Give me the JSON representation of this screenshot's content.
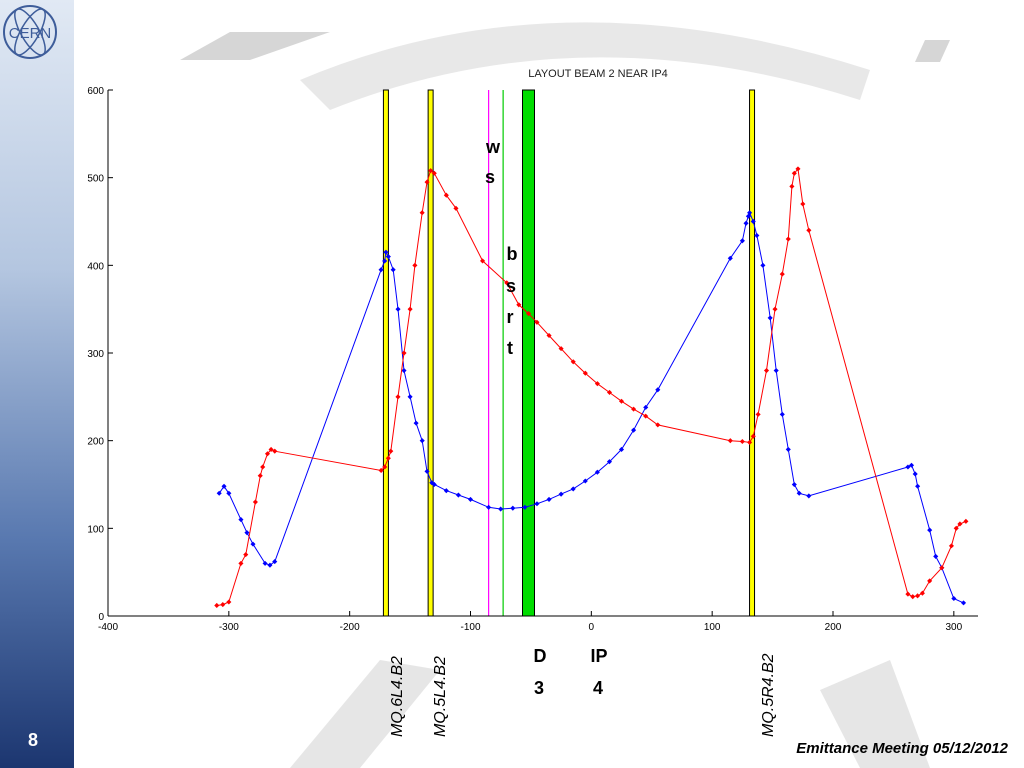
{
  "page_number": "8",
  "footer_text": "Emittance Meeting 05/12/2012",
  "logo_text": "CERN",
  "chart_data": {
    "type": "line",
    "title": "LAYOUT BEAM 2 NEAR IP4",
    "xlim": [
      -400,
      320
    ],
    "ylim": [
      0,
      600
    ],
    "xticks": [
      -400,
      -300,
      -200,
      -100,
      0,
      100,
      200,
      300
    ],
    "yticks": [
      0,
      100,
      200,
      300,
      400,
      500,
      600
    ],
    "grid": false,
    "series": [
      {
        "color": "#0000ff",
        "points": [
          [
            -308,
            140
          ],
          [
            -304,
            148
          ],
          [
            -300,
            140
          ],
          [
            -290,
            110
          ],
          [
            -285,
            95
          ],
          [
            -280,
            82
          ],
          [
            -270,
            60
          ],
          [
            -266,
            58
          ],
          [
            -262,
            62
          ],
          [
            -174,
            395
          ],
          [
            -171,
            405
          ],
          [
            -170,
            415
          ],
          [
            -168,
            410
          ],
          [
            -164,
            395
          ],
          [
            -160,
            350
          ],
          [
            -155,
            280
          ],
          [
            -150,
            250
          ],
          [
            -145,
            220
          ],
          [
            -140,
            200
          ],
          [
            -136,
            165
          ],
          [
            -132,
            152
          ],
          [
            -130,
            150
          ],
          [
            -120,
            143
          ],
          [
            -110,
            138
          ],
          [
            -100,
            133
          ],
          [
            -85,
            124
          ],
          [
            -75,
            122
          ],
          [
            -65,
            123
          ],
          [
            -55,
            124
          ],
          [
            -45,
            128
          ],
          [
            -35,
            133
          ],
          [
            -25,
            139
          ],
          [
            -15,
            145
          ],
          [
            -5,
            154
          ],
          [
            5,
            164
          ],
          [
            15,
            176
          ],
          [
            25,
            190
          ],
          [
            35,
            212
          ],
          [
            45,
            238
          ],
          [
            55,
            258
          ],
          [
            115,
            408
          ],
          [
            125,
            428
          ],
          [
            128,
            448
          ],
          [
            130,
            456
          ],
          [
            131,
            460
          ],
          [
            134,
            450
          ],
          [
            137,
            434
          ],
          [
            142,
            400
          ],
          [
            148,
            340
          ],
          [
            153,
            280
          ],
          [
            158,
            230
          ],
          [
            163,
            190
          ],
          [
            168,
            150
          ],
          [
            172,
            140
          ],
          [
            180,
            137
          ],
          [
            262,
            170
          ],
          [
            265,
            172
          ],
          [
            268,
            162
          ],
          [
            270,
            148
          ],
          [
            280,
            98
          ],
          [
            285,
            68
          ],
          [
            290,
            55
          ],
          [
            300,
            20
          ],
          [
            308,
            15
          ]
        ]
      },
      {
        "color": "#ff0000",
        "points": [
          [
            -310,
            12
          ],
          [
            -305,
            13
          ],
          [
            -300,
            16
          ],
          [
            -290,
            60
          ],
          [
            -286,
            70
          ],
          [
            -278,
            130
          ],
          [
            -274,
            160
          ],
          [
            -272,
            170
          ],
          [
            -268,
            185
          ],
          [
            -265,
            190
          ],
          [
            -262,
            188
          ],
          [
            -174,
            166
          ],
          [
            -171,
            170
          ],
          [
            -168,
            180
          ],
          [
            -166,
            188
          ],
          [
            -160,
            250
          ],
          [
            -155,
            300
          ],
          [
            -150,
            350
          ],
          [
            -146,
            400
          ],
          [
            -140,
            460
          ],
          [
            -136,
            495
          ],
          [
            -133,
            508
          ],
          [
            -130,
            505
          ],
          [
            -120,
            480
          ],
          [
            -112,
            465
          ],
          [
            -90,
            405
          ],
          [
            -70,
            380
          ],
          [
            -60,
            355
          ],
          [
            -52,
            345
          ],
          [
            -45,
            335
          ],
          [
            -35,
            320
          ],
          [
            -25,
            305
          ],
          [
            -15,
            290
          ],
          [
            -5,
            277
          ],
          [
            5,
            265
          ],
          [
            15,
            255
          ],
          [
            25,
            245
          ],
          [
            35,
            236
          ],
          [
            45,
            228
          ],
          [
            55,
            218
          ],
          [
            115,
            200
          ],
          [
            125,
            199
          ],
          [
            131,
            198
          ],
          [
            134,
            205
          ],
          [
            138,
            230
          ],
          [
            145,
            280
          ],
          [
            152,
            350
          ],
          [
            158,
            390
          ],
          [
            163,
            430
          ],
          [
            166,
            490
          ],
          [
            168,
            505
          ],
          [
            171,
            510
          ],
          [
            175,
            470
          ],
          [
            180,
            440
          ],
          [
            262,
            25
          ],
          [
            266,
            22
          ],
          [
            270,
            23
          ],
          [
            274,
            26
          ],
          [
            280,
            40
          ],
          [
            290,
            55
          ],
          [
            298,
            80
          ],
          [
            302,
            100
          ],
          [
            305,
            105
          ],
          [
            310,
            108
          ]
        ]
      }
    ],
    "markers": [
      {
        "x": -170,
        "width": 5,
        "color": "#ffff00",
        "border": "#000000",
        "label": "MQ.6L4.B2"
      },
      {
        "x": -133,
        "width": 5,
        "color": "#ffff00",
        "border": "#000000",
        "label": "MQ.5L4.B2"
      },
      {
        "x": -85,
        "width": 1,
        "color": "#ff00ff",
        "border": "",
        "label": "ws"
      },
      {
        "x": -73,
        "width": 1,
        "color": "#00cc00",
        "border": "",
        "label": "bsrt"
      },
      {
        "x": -52,
        "width": 12,
        "color": "#00dd00",
        "border": "#000000",
        "label": "D3"
      },
      {
        "x": 133,
        "width": 5,
        "color": "#ffff00",
        "border": "#000000",
        "label": "MQ.5R4.B2"
      }
    ],
    "annotations": [
      {
        "text": "w"
      },
      {
        "text": "s"
      },
      {
        "text": "b"
      },
      {
        "text": "s"
      },
      {
        "text": "r"
      },
      {
        "text": "t"
      },
      {
        "text": "D"
      },
      {
        "text": "3"
      },
      {
        "text": "IP"
      },
      {
        "text": "4"
      }
    ],
    "rotated_labels": [
      "MQ.6L4.B2",
      "MQ.5L4.B2",
      "MQ.5R4.B2"
    ]
  }
}
